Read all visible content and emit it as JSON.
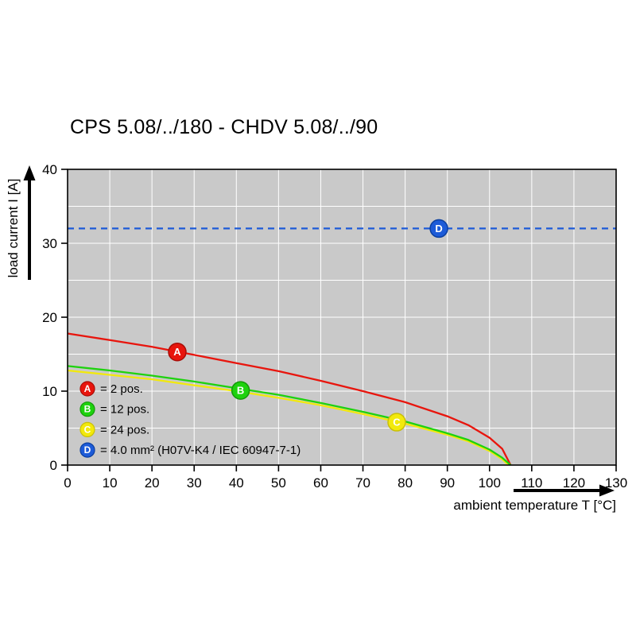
{
  "title": "CPS 5.08/../180 - CHDV 5.08/../90",
  "chart_data": {
    "type": "line",
    "title": "CPS 5.08/../180 - CHDV 5.08/../90",
    "xlabel": "ambient temperature T [°C]",
    "ylabel": "load current I [A]",
    "xlim": [
      0,
      130
    ],
    "ylim": [
      0,
      40
    ],
    "x_ticks": [
      0,
      10,
      20,
      30,
      40,
      50,
      60,
      70,
      80,
      90,
      100,
      110,
      120,
      130
    ],
    "y_ticks": [
      0,
      10,
      20,
      30,
      40
    ],
    "grid": {
      "x_step": 10,
      "y_step": 5,
      "color": "#ffffff",
      "bg": "#c9c9c9",
      "border": "#000000"
    },
    "series": [
      {
        "id": "A",
        "name": "2 pos.",
        "color": "#e8150d",
        "ring": "#a80d07",
        "style": "solid",
        "x": [
          0,
          10,
          20,
          30,
          40,
          50,
          60,
          70,
          80,
          90,
          95,
          100,
          103,
          105
        ],
        "y": [
          17.8,
          16.9,
          16.0,
          14.9,
          13.8,
          12.7,
          11.4,
          10.0,
          8.5,
          6.6,
          5.4,
          3.7,
          2.2,
          0
        ],
        "marker": {
          "x": 26,
          "y": 15.3,
          "label": "A"
        }
      },
      {
        "id": "C",
        "name": "24 pos.",
        "color": "#f2e90c",
        "ring": "#c9bf09",
        "style": "solid",
        "x": [
          0,
          10,
          20,
          30,
          40,
          50,
          60,
          70,
          80,
          90,
          95,
          100,
          103,
          104.5
        ],
        "y": [
          12.8,
          12.2,
          11.6,
          10.8,
          10.0,
          9.1,
          8.1,
          6.9,
          5.6,
          4.1,
          3.2,
          1.9,
          0.8,
          0
        ],
        "marker": {
          "x": 78,
          "y": 5.8,
          "label": "C"
        }
      },
      {
        "id": "B",
        "name": "12 pos.",
        "color": "#1ed20e",
        "ring": "#14980a",
        "style": "solid",
        "x": [
          0,
          10,
          20,
          30,
          40,
          50,
          60,
          70,
          80,
          90,
          95,
          100,
          103,
          105
        ],
        "y": [
          13.4,
          12.8,
          12.1,
          11.3,
          10.4,
          9.5,
          8.4,
          7.2,
          5.9,
          4.3,
          3.4,
          2.1,
          1.0,
          0
        ],
        "marker": {
          "x": 41,
          "y": 10.1,
          "label": "B"
        }
      },
      {
        "id": "D",
        "name": "4.0 mm² (H07V-K4 / IEC 60947-7-1)",
        "color": "#1d5bd8",
        "ring": "#0b3fa0",
        "style": "dashed",
        "x": [
          0,
          130
        ],
        "y": [
          32,
          32
        ],
        "marker": {
          "x": 88,
          "y": 32,
          "label": "D"
        }
      }
    ],
    "legend": [
      {
        "label": "A",
        "color": "#e8150d",
        "ring": "#a80d07",
        "text": "= 2 pos."
      },
      {
        "label": "B",
        "color": "#1ed20e",
        "ring": "#14980a",
        "text": "= 12 pos."
      },
      {
        "label": "C",
        "color": "#f2e90c",
        "ring": "#c9bf09",
        "text": "= 24 pos."
      },
      {
        "label": "D",
        "color": "#1d5bd8",
        "ring": "#0b3fa0",
        "text": "= 4.0 mm² (H07V-K4 / IEC 60947-7-1)"
      }
    ],
    "legend_position": "bottom-left-inside"
  }
}
